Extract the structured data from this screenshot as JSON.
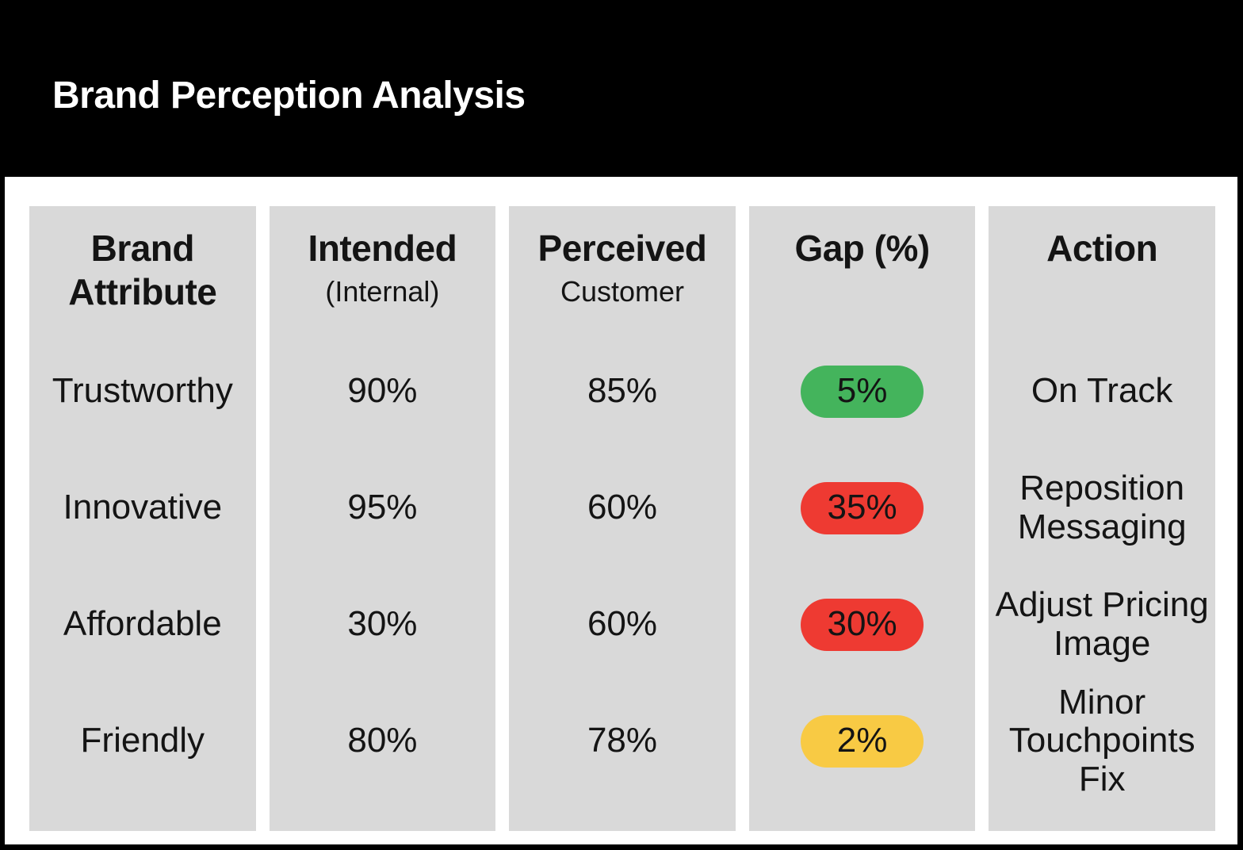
{
  "header": {
    "title": "Brand Perception Analysis"
  },
  "colors": {
    "background": "#000000",
    "panel": "#ffffff",
    "column_bg": "#d9d9d9",
    "text": "#141414",
    "gap_good": "#44b45c",
    "gap_bad": "#ee3a32",
    "gap_minor": "#f8ca44"
  },
  "table": {
    "columns": [
      {
        "title": "Brand Attribute",
        "subtitle": ""
      },
      {
        "title": "Intended",
        "subtitle": "(Internal)"
      },
      {
        "title": "Perceived",
        "subtitle": "Customer"
      },
      {
        "title": "Gap (%)",
        "subtitle": ""
      },
      {
        "title": "Action",
        "subtitle": ""
      }
    ],
    "rows": [
      {
        "attribute": "Trustworthy",
        "intended": "90%",
        "perceived": "85%",
        "gap": "5%",
        "gap_status": "good",
        "gap_color": "#44b45c",
        "action": "On Track"
      },
      {
        "attribute": "Innovative",
        "intended": "95%",
        "perceived": "60%",
        "gap": "35%",
        "gap_status": "bad",
        "gap_color": "#ee3a32",
        "action": "Reposition Messaging"
      },
      {
        "attribute": "Affordable",
        "intended": "30%",
        "perceived": "60%",
        "gap": "30%",
        "gap_status": "bad",
        "gap_color": "#ee3a32",
        "action": "Adjust Pricing Image"
      },
      {
        "attribute": "Friendly",
        "intended": "80%",
        "perceived": "78%",
        "gap": "2%",
        "gap_status": "minor",
        "gap_color": "#f8ca44",
        "action": "Minor Touchpoints Fix"
      }
    ]
  },
  "chart_data": {
    "type": "table",
    "title": "Brand Perception Analysis",
    "columns": [
      "Brand Attribute",
      "Intended (Internal)",
      "Perceived Customer",
      "Gap (%)",
      "Action"
    ],
    "categories": [
      "Trustworthy",
      "Innovative",
      "Affordable",
      "Friendly"
    ],
    "series": [
      {
        "name": "Intended (Internal)",
        "values": [
          90,
          95,
          30,
          80
        ]
      },
      {
        "name": "Perceived (Customer)",
        "values": [
          85,
          60,
          60,
          78
        ]
      },
      {
        "name": "Gap (%)",
        "values": [
          5,
          35,
          30,
          2
        ]
      }
    ],
    "rows": [
      [
        "Trustworthy",
        "90%",
        "85%",
        "5%",
        "On Track"
      ],
      [
        "Innovative",
        "95%",
        "60%",
        "35%",
        "Reposition Messaging"
      ],
      [
        "Affordable",
        "30%",
        "60%",
        "30%",
        "Adjust Pricing Image"
      ],
      [
        "Friendly",
        "80%",
        "78%",
        "2%",
        "Minor Touchpoints Fix"
      ]
    ],
    "gap_status_per_row": [
      "good",
      "bad",
      "bad",
      "minor"
    ],
    "legend_position": "none",
    "grid": false
  }
}
